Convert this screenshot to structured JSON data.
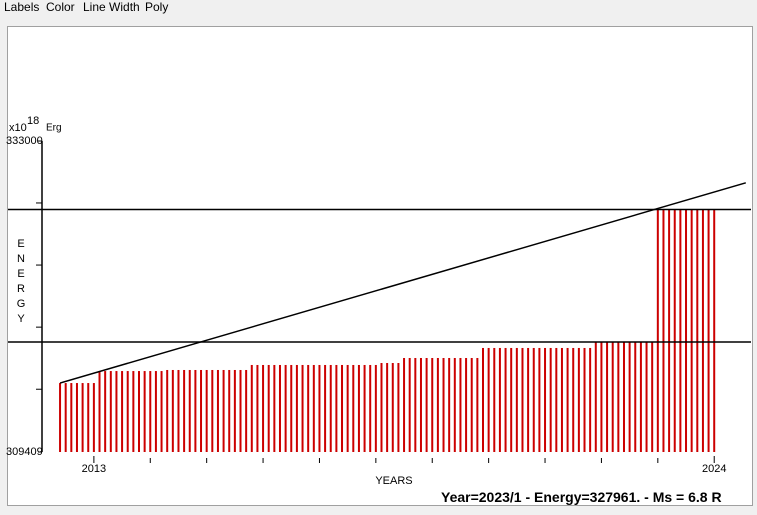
{
  "menu": [
    "Labels",
    "Color",
    "Line Width",
    "Poly"
  ],
  "status": "Year=2023/1 - Energy=327961. - Ms = 6.8 R",
  "chart_data": {
    "type": "bar",
    "y_unit_base": "x10",
    "y_unit_exp": "18",
    "y_unit": "Erg",
    "y_label": "ENERGY",
    "x_label": "YEARS",
    "xlim": [
      2012.08,
      2024.67
    ],
    "xticks": [
      2013,
      2024
    ],
    "xminor": [
      2014,
      2015,
      2016,
      2017,
      2018,
      2019,
      2020,
      2021,
      2022,
      2023
    ],
    "ylim": [
      309409,
      333000
    ],
    "yticks": [
      309409,
      333000
    ],
    "yminor": [
      314170,
      318880,
      323590,
      328300
    ],
    "color": "#cc0000",
    "x": [
      2012.4,
      2012.5,
      2012.6,
      2012.7,
      2012.8,
      2012.9,
      2013.0,
      2013.1,
      2013.2,
      2013.3,
      2013.4,
      2013.5,
      2013.6,
      2013.7,
      2013.8,
      2013.9,
      2014.0,
      2014.1,
      2014.2,
      2014.3,
      2014.4,
      2014.5,
      2014.6,
      2014.7,
      2014.8,
      2014.9,
      2015.0,
      2015.1,
      2015.2,
      2015.3,
      2015.4,
      2015.5,
      2015.6,
      2015.7,
      2015.8,
      2015.9,
      2016.0,
      2016.1,
      2016.2,
      2016.3,
      2016.4,
      2016.5,
      2016.6,
      2016.7,
      2016.8,
      2016.9,
      2017.0,
      2017.1,
      2017.2,
      2017.3,
      2017.4,
      2017.5,
      2017.6,
      2017.7,
      2017.8,
      2017.9,
      2018.0,
      2018.1,
      2018.2,
      2018.3,
      2018.4,
      2018.5,
      2018.6,
      2018.7,
      2018.8,
      2018.9,
      2019.0,
      2019.1,
      2019.2,
      2019.3,
      2019.4,
      2019.5,
      2019.6,
      2019.7,
      2019.8,
      2019.9,
      2020.0,
      2020.1,
      2020.2,
      2020.3,
      2020.4,
      2020.5,
      2020.6,
      2020.7,
      2020.8,
      2020.9,
      2021.0,
      2021.1,
      2021.2,
      2021.3,
      2021.4,
      2021.5,
      2021.6,
      2021.7,
      2021.8,
      2021.9,
      2022.0,
      2022.1,
      2022.2,
      2022.3,
      2022.4,
      2022.5,
      2022.6,
      2022.7,
      2022.8,
      2022.9,
      2023.0,
      2023.1,
      2023.2,
      2023.3,
      2023.4,
      2023.5,
      2023.6,
      2023.7,
      2023.8,
      2023.9,
      2024.0
    ],
    "values": [
      314640,
      314640,
      314640,
      314640,
      314640,
      314640,
      314640,
      315550,
      315550,
      315550,
      315550,
      315550,
      315550,
      315550,
      315550,
      315550,
      315550,
      315550,
      315550,
      315630,
      315630,
      315630,
      315630,
      315630,
      315630,
      315630,
      315630,
      315630,
      315630,
      315630,
      315630,
      315630,
      315630,
      315630,
      316010,
      316010,
      316010,
      316010,
      316010,
      316010,
      316010,
      316010,
      316010,
      316010,
      316010,
      316010,
      316010,
      316010,
      316010,
      316010,
      316010,
      316010,
      316010,
      316010,
      316010,
      316010,
      316010,
      316160,
      316160,
      316160,
      316160,
      316540,
      316540,
      316540,
      316540,
      316540,
      316540,
      316540,
      316540,
      316540,
      316540,
      316540,
      316540,
      316540,
      316540,
      317300,
      317300,
      317300,
      317300,
      317300,
      317300,
      317300,
      317300,
      317300,
      317300,
      317300,
      317300,
      317300,
      317300,
      317300,
      317300,
      317300,
      317300,
      317300,
      317300,
      317750,
      317750,
      317750,
      317750,
      317750,
      317750,
      317750,
      317750,
      317750,
      317750,
      317750,
      327800,
      327800,
      327800,
      327800,
      327800,
      327800,
      327800,
      327800,
      327800,
      327800,
      327800
    ],
    "hlines": [
      327800,
      317750
    ],
    "trend_line": {
      "x": [
        2012.4,
        2024.56
      ],
      "values": [
        314640,
        329830
      ]
    }
  }
}
